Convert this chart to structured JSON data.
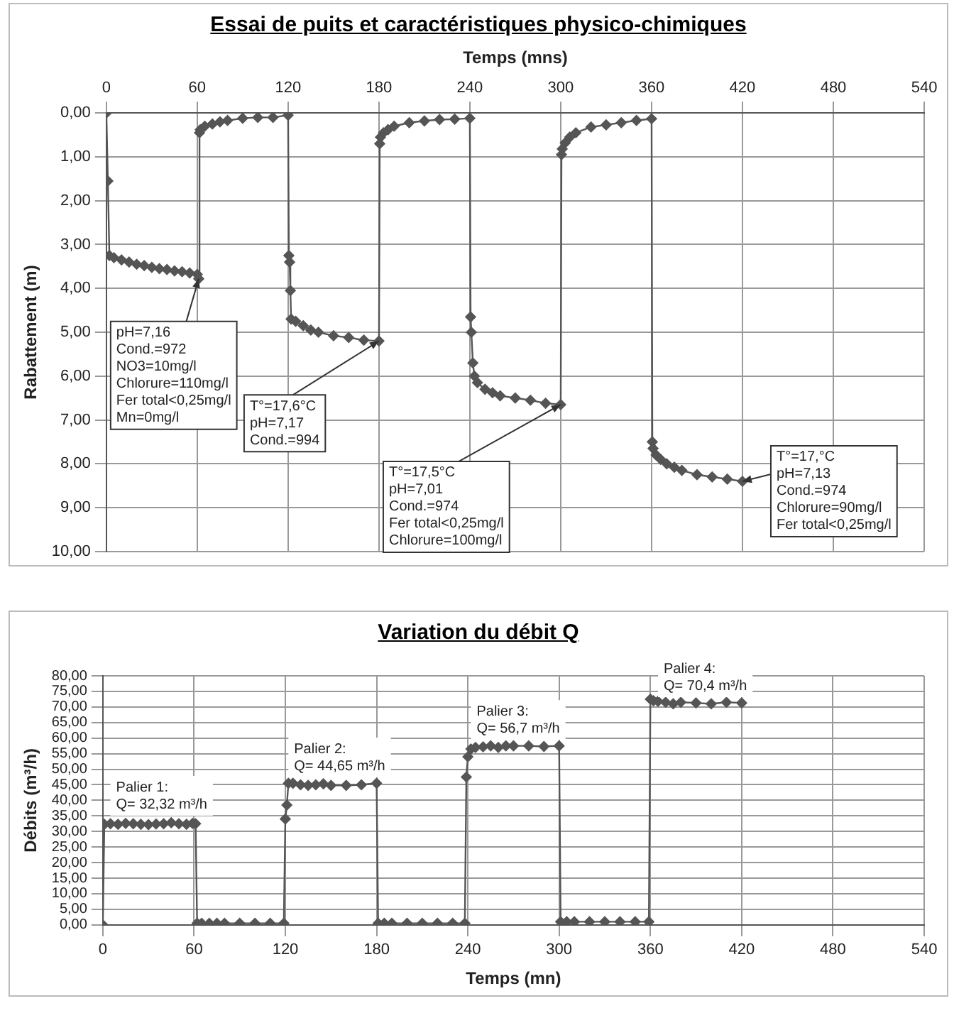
{
  "chart_data": [
    {
      "type": "line",
      "title": "Essai de puits et caractéristiques physico-chimiques",
      "xlabel": "Temps (mns)",
      "ylabel": "Rabattement (m)",
      "marker": "diamond",
      "line_style": "solid",
      "grid": true,
      "legend": false,
      "xlim": [
        0,
        540
      ],
      "xticks": [
        0,
        60,
        120,
        180,
        240,
        300,
        360,
        420,
        480,
        540
      ],
      "ylim": [
        10,
        0
      ],
      "yticks": [
        {
          "value": 0,
          "label": "0,00"
        },
        {
          "value": 1,
          "label": "1,00"
        },
        {
          "value": 2,
          "label": "2,00"
        },
        {
          "value": 3,
          "label": "3,00"
        },
        {
          "value": 4,
          "label": "4,00"
        },
        {
          "value": 5,
          "label": "5,00"
        },
        {
          "value": 6,
          "label": "6,00"
        },
        {
          "value": 7,
          "label": "7,00"
        },
        {
          "value": 8,
          "label": "8,00"
        },
        {
          "value": 9,
          "label": "9,00"
        },
        {
          "value": 10,
          "label": "10,00"
        }
      ],
      "series": [
        {
          "color": "#555555",
          "x": [
            0,
            1,
            2,
            5,
            10,
            15,
            20,
            25,
            30,
            35,
            40,
            45,
            50,
            55,
            60,
            61,
            61.5,
            62,
            65,
            70,
            75,
            80,
            90,
            100,
            110,
            120,
            120.5,
            121,
            121.5,
            122,
            125,
            130,
            135,
            140,
            150,
            160,
            170,
            180,
            180.5,
            181,
            183,
            186,
            190,
            200,
            210,
            220,
            230,
            240,
            240.5,
            241,
            242,
            243,
            245,
            250,
            255,
            260,
            270,
            280,
            290,
            300,
            300.5,
            301,
            303,
            306,
            310,
            320,
            330,
            340,
            350,
            360,
            360.5,
            361,
            363,
            366,
            370,
            375,
            380,
            390,
            400,
            410,
            420
          ],
          "values": [
            0,
            1.55,
            3.25,
            3.3,
            3.35,
            3.4,
            3.45,
            3.48,
            3.52,
            3.55,
            3.57,
            3.6,
            3.62,
            3.65,
            3.68,
            3.78,
            0.45,
            0.38,
            0.3,
            0.25,
            0.2,
            0.17,
            0.12,
            0.1,
            0.1,
            0.05,
            3.25,
            3.4,
            4.05,
            4.7,
            4.75,
            4.85,
            4.95,
            5.0,
            5.08,
            5.12,
            5.18,
            5.2,
            0.7,
            0.55,
            0.45,
            0.38,
            0.3,
            0.22,
            0.18,
            0.15,
            0.14,
            0.12,
            4.65,
            5.0,
            5.7,
            6.0,
            6.15,
            6.3,
            6.38,
            6.45,
            6.5,
            6.55,
            6.62,
            6.65,
            0.95,
            0.82,
            0.68,
            0.55,
            0.45,
            0.32,
            0.27,
            0.22,
            0.17,
            0.13,
            7.5,
            7.65,
            7.8,
            7.9,
            8.0,
            8.08,
            8.15,
            8.25,
            8.3,
            8.35,
            8.4
          ]
        }
      ],
      "annotations": [
        {
          "text": "pH=7,16\nCond.=972\nNO3=10mg/l\nChlorure=110mg/l\nFer total<0,25mg/l\nMn=0mg/l",
          "x": 61,
          "y": 3.78
        },
        {
          "text": "T°=17,6°C\npH=7,17\nCond.=994",
          "x": 180,
          "y": 5.2
        },
        {
          "text": "T°=17,5°C\npH=7,01\nCond.=974\nFer total<0,25mg/l\nChlorure=100mg/l",
          "x": 300,
          "y": 6.65
        },
        {
          "text": "T°=17,°C\npH=7,13\nCond.=974\nChlorure=90mg/l\nFer total<0,25mg/l",
          "x": 420,
          "y": 8.4
        }
      ]
    },
    {
      "type": "line",
      "title": "Variation du débit Q",
      "xlabel": "Temps (mn)",
      "ylabel": "Débits (m³/h)",
      "marker": "diamond",
      "line_style": "solid",
      "grid": true,
      "legend": false,
      "xlim": [
        0,
        540
      ],
      "xticks": [
        0,
        60,
        120,
        180,
        240,
        300,
        360,
        420,
        480,
        540
      ],
      "ylim": [
        0,
        80
      ],
      "yticks": [
        {
          "value": 0,
          "label": "0,00"
        },
        {
          "value": 5,
          "label": "5,00"
        },
        {
          "value": 10,
          "label": "10,00"
        },
        {
          "value": 15,
          "label": "15,00"
        },
        {
          "value": 20,
          "label": "20,00"
        },
        {
          "value": 25,
          "label": "25,00"
        },
        {
          "value": 30,
          "label": "30,00"
        },
        {
          "value": 35,
          "label": "35,00"
        },
        {
          "value": 40,
          "label": "40,00"
        },
        {
          "value": 45,
          "label": "45,00"
        },
        {
          "value": 50,
          "label": "50,00"
        },
        {
          "value": 55,
          "label": "55,00"
        },
        {
          "value": 60,
          "label": "60,00"
        },
        {
          "value": 65,
          "label": "65,00"
        },
        {
          "value": 70,
          "label": "70,00"
        },
        {
          "value": 75,
          "label": "75,00"
        },
        {
          "value": 80,
          "label": "80,00"
        }
      ],
      "series": [
        {
          "color": "#555555",
          "x": [
            0,
            1,
            5,
            10,
            15,
            20,
            25,
            30,
            35,
            40,
            45,
            50,
            55,
            59,
            61,
            62,
            65,
            70,
            75,
            80,
            90,
            100,
            110,
            119,
            120,
            121,
            122,
            125,
            130,
            135,
            140,
            145,
            150,
            160,
            170,
            180,
            181,
            185,
            190,
            200,
            210,
            220,
            230,
            238,
            239,
            240,
            242,
            245,
            250,
            255,
            260,
            265,
            270,
            280,
            290,
            300,
            301,
            305,
            310,
            320,
            330,
            340,
            350,
            359,
            360,
            362,
            365,
            370,
            375,
            380,
            390,
            400,
            410,
            420
          ],
          "values": [
            0,
            32.3,
            32.5,
            32.3,
            32.6,
            32.5,
            32.3,
            32.2,
            32.4,
            32.5,
            32.8,
            32.5,
            32.3,
            32.6,
            32.5,
            0.5,
            0.5,
            0.5,
            0.5,
            0.5,
            0.5,
            0.5,
            0.5,
            0.5,
            34,
            38.5,
            45.5,
            45.5,
            45,
            44.8,
            45,
            45.3,
            44.8,
            44.8,
            45,
            45.5,
            0.5,
            0.5,
            0.5,
            0.5,
            0.5,
            0.5,
            0.5,
            0.5,
            47.5,
            54,
            56.5,
            57,
            57.2,
            57.5,
            57,
            57.5,
            57.5,
            57.5,
            57.3,
            57.5,
            1,
            1,
            1,
            1,
            1,
            1,
            1,
            1,
            72.5,
            72,
            71.8,
            71.5,
            71,
            71.5,
            71.3,
            71,
            71.5,
            71.3
          ]
        }
      ],
      "annotations": [
        {
          "text": "Palier 1:\nQ= 32,32 m³/h",
          "x": 5,
          "y": 32.32
        },
        {
          "text": "Palier 2:\nQ= 44,65 m³/h",
          "x": 122,
          "y": 44.65
        },
        {
          "text": "Palier 3:\nQ= 56,7 m³/h",
          "x": 242,
          "y": 56.7
        },
        {
          "text": "Palier 4:\nQ= 70,4 m³/h",
          "x": 365,
          "y": 70.4
        }
      ]
    }
  ]
}
